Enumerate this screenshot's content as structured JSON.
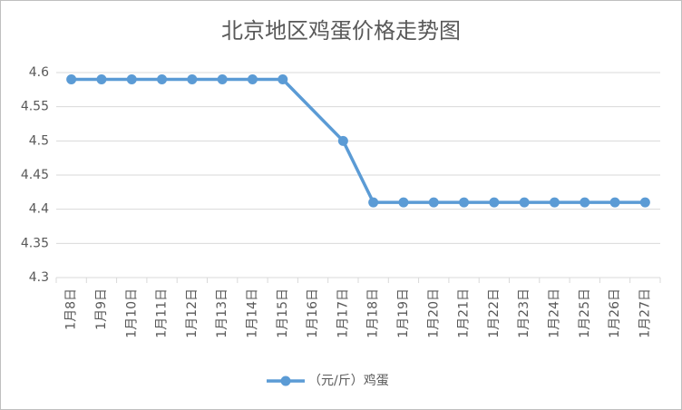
{
  "chart_data": {
    "type": "line",
    "title": "北京地区鸡蛋价格走势图",
    "categories": [
      "1月8日",
      "1月9日",
      "1月10日",
      "1月11日",
      "1月12日",
      "1月13日",
      "1月14日",
      "1月15日",
      "1月16日",
      "1月17日",
      "1月18日",
      "1月19日",
      "1月20日",
      "1月21日",
      "1月22日",
      "1月23日",
      "1月24日",
      "1月25日",
      "1月26日",
      "1月27日"
    ],
    "series": [
      {
        "name": "（元/斤）鸡蛋",
        "color": "#5b9bd5",
        "values": [
          4.59,
          4.59,
          4.59,
          4.59,
          4.59,
          4.59,
          4.59,
          4.59,
          null,
          4.5,
          4.41,
          4.41,
          4.41,
          4.41,
          4.41,
          4.41,
          4.41,
          4.41,
          4.41,
          4.41
        ]
      }
    ],
    "ylim": [
      4.3,
      4.6
    ],
    "yticks": [
      4.3,
      4.35,
      4.4,
      4.45,
      4.5,
      4.55,
      4.6
    ],
    "grid": true,
    "connect_gaps": true,
    "legend": "bottom"
  }
}
